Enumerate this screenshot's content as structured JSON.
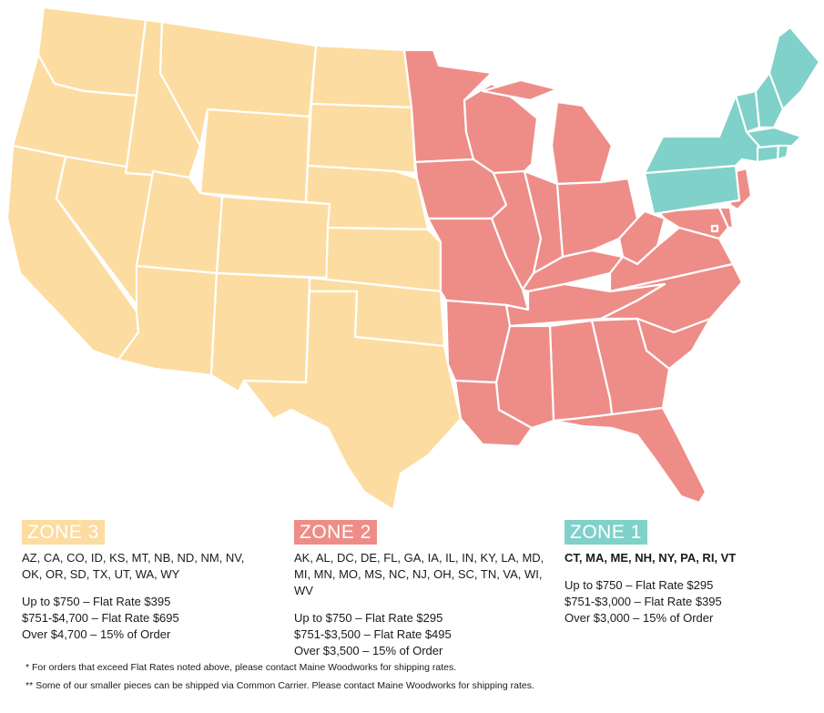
{
  "colors": {
    "zone3": "#fcdca1",
    "zone2": "#ee8d88",
    "zone1": "#7fd1c9",
    "border": "#ffffff"
  },
  "zones": [
    {
      "label": "ZONE 3",
      "color": "#fcdca1",
      "states": "AZ, CA, CO, ID, KS, MT, NB, ND, NM, NV, OK, OR, SD, TX, UT, WA, WY",
      "rates": [
        "Up to $750 – Flat Rate $395",
        "$751-$4,700 – Flat Rate $695",
        "Over $4,700 – 15% of Order"
      ]
    },
    {
      "label": "ZONE 2",
      "color": "#ee8d88",
      "states": "AK, AL, DC, DE, FL, GA, IA, IL, IN, KY, LA, MD, MI, MN, MO, MS, NC, NJ, OH, SC, TN, VA, WI, WV",
      "rates": [
        "Up to $750 – Flat Rate $295",
        "$751-$3,500 – Flat Rate $495",
        "Over $3,500 – 15% of Order"
      ]
    },
    {
      "label": "ZONE 1",
      "color": "#7fd1c9",
      "states": "CT, MA, ME, NH, NY, PA, RI, VT",
      "rates": [
        "Up to $750 – Flat Rate $295",
        "$751-$3,000 – Flat Rate $395",
        "Over $3,000 – 15% of Order"
      ]
    }
  ],
  "footnotes": [
    "* For orders that exceed Flat Rates noted above, please contact Maine Woodworks for shipping rates.",
    "** Some of our smaller pieces can be shipped via Common Carrier. Please contact Maine Woodworks for shipping rates."
  ]
}
